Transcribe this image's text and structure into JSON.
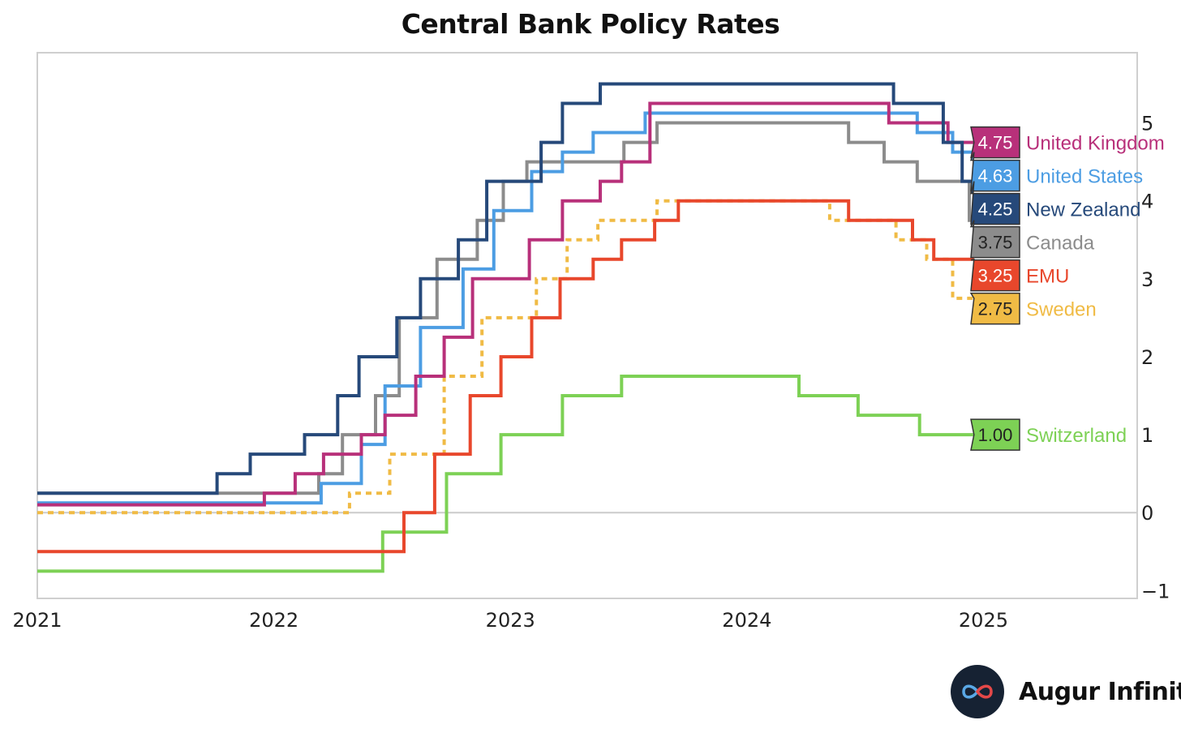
{
  "brand": {
    "name": "Augur Infinity",
    "logo_icon": "infinity-logo-icon"
  },
  "chart_data": {
    "type": "line",
    "step": true,
    "title": "Central Bank Policy Rates",
    "xlabel": "",
    "ylabel": "",
    "xlim": [
      2021.0,
      2025.65
    ],
    "ylim": [
      -1.1,
      5.9
    ],
    "x_ticks": [
      2021,
      2022,
      2023,
      2024,
      2025
    ],
    "y_ticks": [
      -1,
      0,
      1,
      2,
      3,
      4,
      5
    ],
    "y_tick_labels": [
      "−1",
      "0",
      "1",
      "2",
      "3",
      "4",
      "5"
    ],
    "y_axis_side": "right",
    "gridlines": "zero line only",
    "legend": "end-of-line value tags, right side",
    "series": [
      {
        "name": "Switzerland",
        "color": "#7dd155",
        "dashed": false,
        "last_label": "1.00",
        "x": [
          2021.0,
          2022.46,
          2022.73,
          2022.96,
          2023.22,
          2023.47,
          2024.22,
          2024.47,
          2024.73,
          2024.96
        ],
        "y": [
          -0.75,
          -0.25,
          0.5,
          1.0,
          1.5,
          1.75,
          1.5,
          1.25,
          1.0,
          1.0
        ]
      },
      {
        "name": "Sweden",
        "color": "#f0bb45",
        "dashed": true,
        "last_label": "2.75",
        "x": [
          2021.0,
          2022.32,
          2022.49,
          2022.72,
          2022.88,
          2023.11,
          2023.24,
          2023.37,
          2023.62,
          2023.74,
          2024.35,
          2024.63,
          2024.76,
          2024.87,
          2024.96
        ],
        "y": [
          0.0,
          0.25,
          0.75,
          1.75,
          2.5,
          3.0,
          3.5,
          3.75,
          4.0,
          4.0,
          3.75,
          3.5,
          3.25,
          2.75,
          2.75
        ]
      },
      {
        "name": "EMU",
        "color": "#e8472c",
        "dashed": false,
        "last_label": "3.25",
        "x": [
          2021.0,
          2022.55,
          2022.68,
          2022.83,
          2022.96,
          2023.09,
          2023.21,
          2023.35,
          2023.47,
          2023.61,
          2023.71,
          2024.43,
          2024.7,
          2024.79,
          2024.96
        ],
        "y": [
          -0.5,
          0.0,
          0.75,
          1.5,
          2.0,
          2.5,
          3.0,
          3.25,
          3.5,
          3.75,
          4.0,
          3.75,
          3.5,
          3.25,
          3.25
        ]
      },
      {
        "name": "Canada",
        "color": "#8c8c8c",
        "dashed": false,
        "last_label": "3.75",
        "x": [
          2021.0,
          2022.19,
          2022.29,
          2022.43,
          2022.53,
          2022.69,
          2022.86,
          2022.97,
          2023.07,
          2023.48,
          2023.62,
          2024.43,
          2024.58,
          2024.72,
          2024.94,
          2024.96
        ],
        "y": [
          0.25,
          0.5,
          1.0,
          1.5,
          2.5,
          3.25,
          3.75,
          4.25,
          4.5,
          4.75,
          5.0,
          4.75,
          4.5,
          4.25,
          3.75,
          3.75
        ]
      },
      {
        "name": "United States",
        "color": "#4c9de3",
        "dashed": false,
        "last_label": "4.63",
        "x": [
          2021.0,
          2022.2,
          2022.37,
          2022.47,
          2022.62,
          2022.8,
          2022.93,
          2023.09,
          2023.22,
          2023.35,
          2023.57,
          2024.72,
          2024.87,
          2024.96
        ],
        "y": [
          0.125,
          0.375,
          0.875,
          1.625,
          2.375,
          3.125,
          3.875,
          4.375,
          4.625,
          4.875,
          5.125,
          4.875,
          4.625,
          4.625
        ]
      },
      {
        "name": "United Kingdom",
        "color": "#b8307a",
        "dashed": false,
        "last_label": "4.75",
        "x": [
          2021.0,
          2021.96,
          2022.09,
          2022.21,
          2022.37,
          2022.47,
          2022.6,
          2022.72,
          2022.84,
          2023.08,
          2023.22,
          2023.38,
          2023.47,
          2023.59,
          2024.6,
          2024.85,
          2024.96
        ],
        "y": [
          0.1,
          0.25,
          0.5,
          0.75,
          1.0,
          1.25,
          1.75,
          2.25,
          3.0,
          3.5,
          4.0,
          4.25,
          4.5,
          5.25,
          5.0,
          4.75,
          4.75
        ]
      },
      {
        "name": "New Zealand",
        "color": "#26497a",
        "dashed": false,
        "last_label": "4.25",
        "x": [
          2021.0,
          2021.76,
          2021.9,
          2022.13,
          2022.27,
          2022.36,
          2022.52,
          2022.62,
          2022.78,
          2022.9,
          2023.13,
          2023.22,
          2023.38,
          2024.62,
          2024.83,
          2024.91,
          2024.96
        ],
        "y": [
          0.25,
          0.5,
          0.75,
          1.0,
          1.5,
          2.0,
          2.5,
          3.0,
          3.5,
          4.25,
          4.75,
          5.25,
          5.5,
          5.25,
          4.75,
          4.25,
          4.25
        ]
      }
    ]
  }
}
